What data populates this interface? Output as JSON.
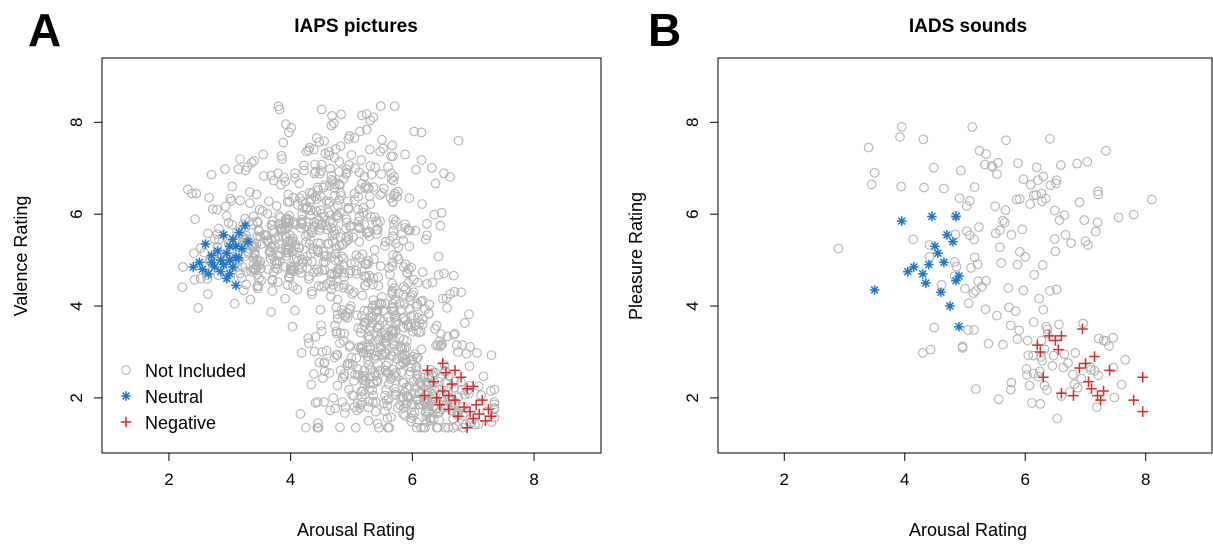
{
  "chart_data": [
    {
      "type": "scatter",
      "panel_letter": "A",
      "title": "IAPS pictures",
      "xlabel": "Arousal Rating",
      "ylabel": "Valence Rating",
      "xlim": [
        0.9,
        9.1
      ],
      "ylim": [
        0.8,
        9.4
      ],
      "xticks": [
        2,
        4,
        6,
        8
      ],
      "yticks": [
        2,
        4,
        6,
        8
      ],
      "grid": false,
      "legend_position": "bottom-left",
      "series": [
        {
          "name": "Not Included",
          "marker": "circle",
          "color": "#b3b3b3",
          "points": []
        },
        {
          "name": "Neutral",
          "marker": "asterisk",
          "color": "#1f77c9",
          "points": [
            [
              2.4,
              4.85
            ],
            [
              2.5,
              4.95
            ],
            [
              2.55,
              4.8
            ],
            [
              2.6,
              5.35
            ],
            [
              2.65,
              4.7
            ],
            [
              2.7,
              5.1
            ],
            [
              2.7,
              4.95
            ],
            [
              2.75,
              4.85
            ],
            [
              2.8,
              5.2
            ],
            [
              2.85,
              5.0
            ],
            [
              2.9,
              5.55
            ],
            [
              2.9,
              4.9
            ],
            [
              2.95,
              4.6
            ],
            [
              2.95,
              5.15
            ],
            [
              3.0,
              5.0
            ],
            [
              3.0,
              4.7
            ],
            [
              3.05,
              5.45
            ],
            [
              3.05,
              4.85
            ],
            [
              3.1,
              5.3
            ],
            [
              3.1,
              4.45
            ],
            [
              3.15,
              5.6
            ],
            [
              3.15,
              5.05
            ],
            [
              3.2,
              5.25
            ],
            [
              3.25,
              5.75
            ],
            [
              3.3,
              5.4
            ],
            [
              3.1,
              5.05
            ],
            [
              2.85,
              4.75
            ],
            [
              3.0,
              5.3
            ]
          ]
        },
        {
          "name": "Negative",
          "marker": "plus",
          "color": "#d62b2b",
          "points": [
            [
              6.2,
              2.05
            ],
            [
              6.25,
              2.6
            ],
            [
              6.35,
              2.35
            ],
            [
              6.45,
              1.85
            ],
            [
              6.5,
              2.75
            ],
            [
              6.5,
              2.15
            ],
            [
              6.55,
              2.55
            ],
            [
              6.6,
              1.75
            ],
            [
              6.6,
              2.05
            ],
            [
              6.65,
              2.3
            ],
            [
              6.7,
              1.95
            ],
            [
              6.75,
              1.6
            ],
            [
              6.8,
              2.45
            ],
            [
              6.85,
              1.8
            ],
            [
              6.9,
              2.2
            ],
            [
              6.9,
              1.35
            ],
            [
              6.95,
              1.7
            ],
            [
              7.0,
              2.25
            ],
            [
              7.0,
              1.55
            ],
            [
              7.05,
              1.85
            ],
            [
              7.1,
              1.65
            ],
            [
              7.15,
              1.95
            ],
            [
              7.2,
              1.5
            ],
            [
              7.25,
              1.75
            ],
            [
              7.3,
              1.6
            ],
            [
              6.4,
              2.0
            ],
            [
              6.7,
              2.6
            ]
          ]
        }
      ]
    },
    {
      "type": "scatter",
      "panel_letter": "B",
      "title": "IADS sounds",
      "xlabel": "Arousal Rating",
      "ylabel": "Pleasure Rating",
      "xlim": [
        0.9,
        9.1
      ],
      "ylim": [
        0.8,
        9.4
      ],
      "xticks": [
        2,
        4,
        6,
        8
      ],
      "yticks": [
        2,
        4,
        6,
        8
      ],
      "grid": false,
      "series": [
        {
          "name": "Not Included",
          "marker": "circle",
          "color": "#b3b3b3",
          "points": []
        },
        {
          "name": "Neutral",
          "marker": "asterisk",
          "color": "#1f77c9",
          "points": [
            [
              3.5,
              4.35
            ],
            [
              3.95,
              5.85
            ],
            [
              4.05,
              4.75
            ],
            [
              4.15,
              4.85
            ],
            [
              4.3,
              4.7
            ],
            [
              4.35,
              4.5
            ],
            [
              4.4,
              4.9
            ],
            [
              4.45,
              5.95
            ],
            [
              4.5,
              5.3
            ],
            [
              4.55,
              5.15
            ],
            [
              4.6,
              4.3
            ],
            [
              4.65,
              4.95
            ],
            [
              4.7,
              5.55
            ],
            [
              4.75,
              4.0
            ],
            [
              4.8,
              5.4
            ],
            [
              4.85,
              5.95
            ],
            [
              4.85,
              4.55
            ],
            [
              4.9,
              4.65
            ],
            [
              4.9,
              3.55
            ]
          ]
        },
        {
          "name": "Negative",
          "marker": "plus",
          "color": "#d62b2b",
          "points": [
            [
              6.2,
              3.15
            ],
            [
              6.25,
              3.0
            ],
            [
              6.3,
              2.45
            ],
            [
              6.4,
              3.35
            ],
            [
              6.5,
              3.25
            ],
            [
              6.55,
              3.05
            ],
            [
              6.6,
              3.35
            ],
            [
              6.6,
              2.1
            ],
            [
              6.8,
              2.05
            ],
            [
              6.9,
              2.65
            ],
            [
              6.95,
              3.5
            ],
            [
              7.0,
              2.75
            ],
            [
              7.05,
              2.35
            ],
            [
              7.1,
              2.2
            ],
            [
              7.15,
              2.9
            ],
            [
              7.2,
              2.05
            ],
            [
              7.25,
              1.95
            ],
            [
              7.3,
              2.15
            ],
            [
              7.4,
              2.6
            ],
            [
              7.8,
              1.95
            ],
            [
              7.95,
              2.45
            ],
            [
              7.95,
              1.7
            ]
          ]
        }
      ]
    }
  ]
}
